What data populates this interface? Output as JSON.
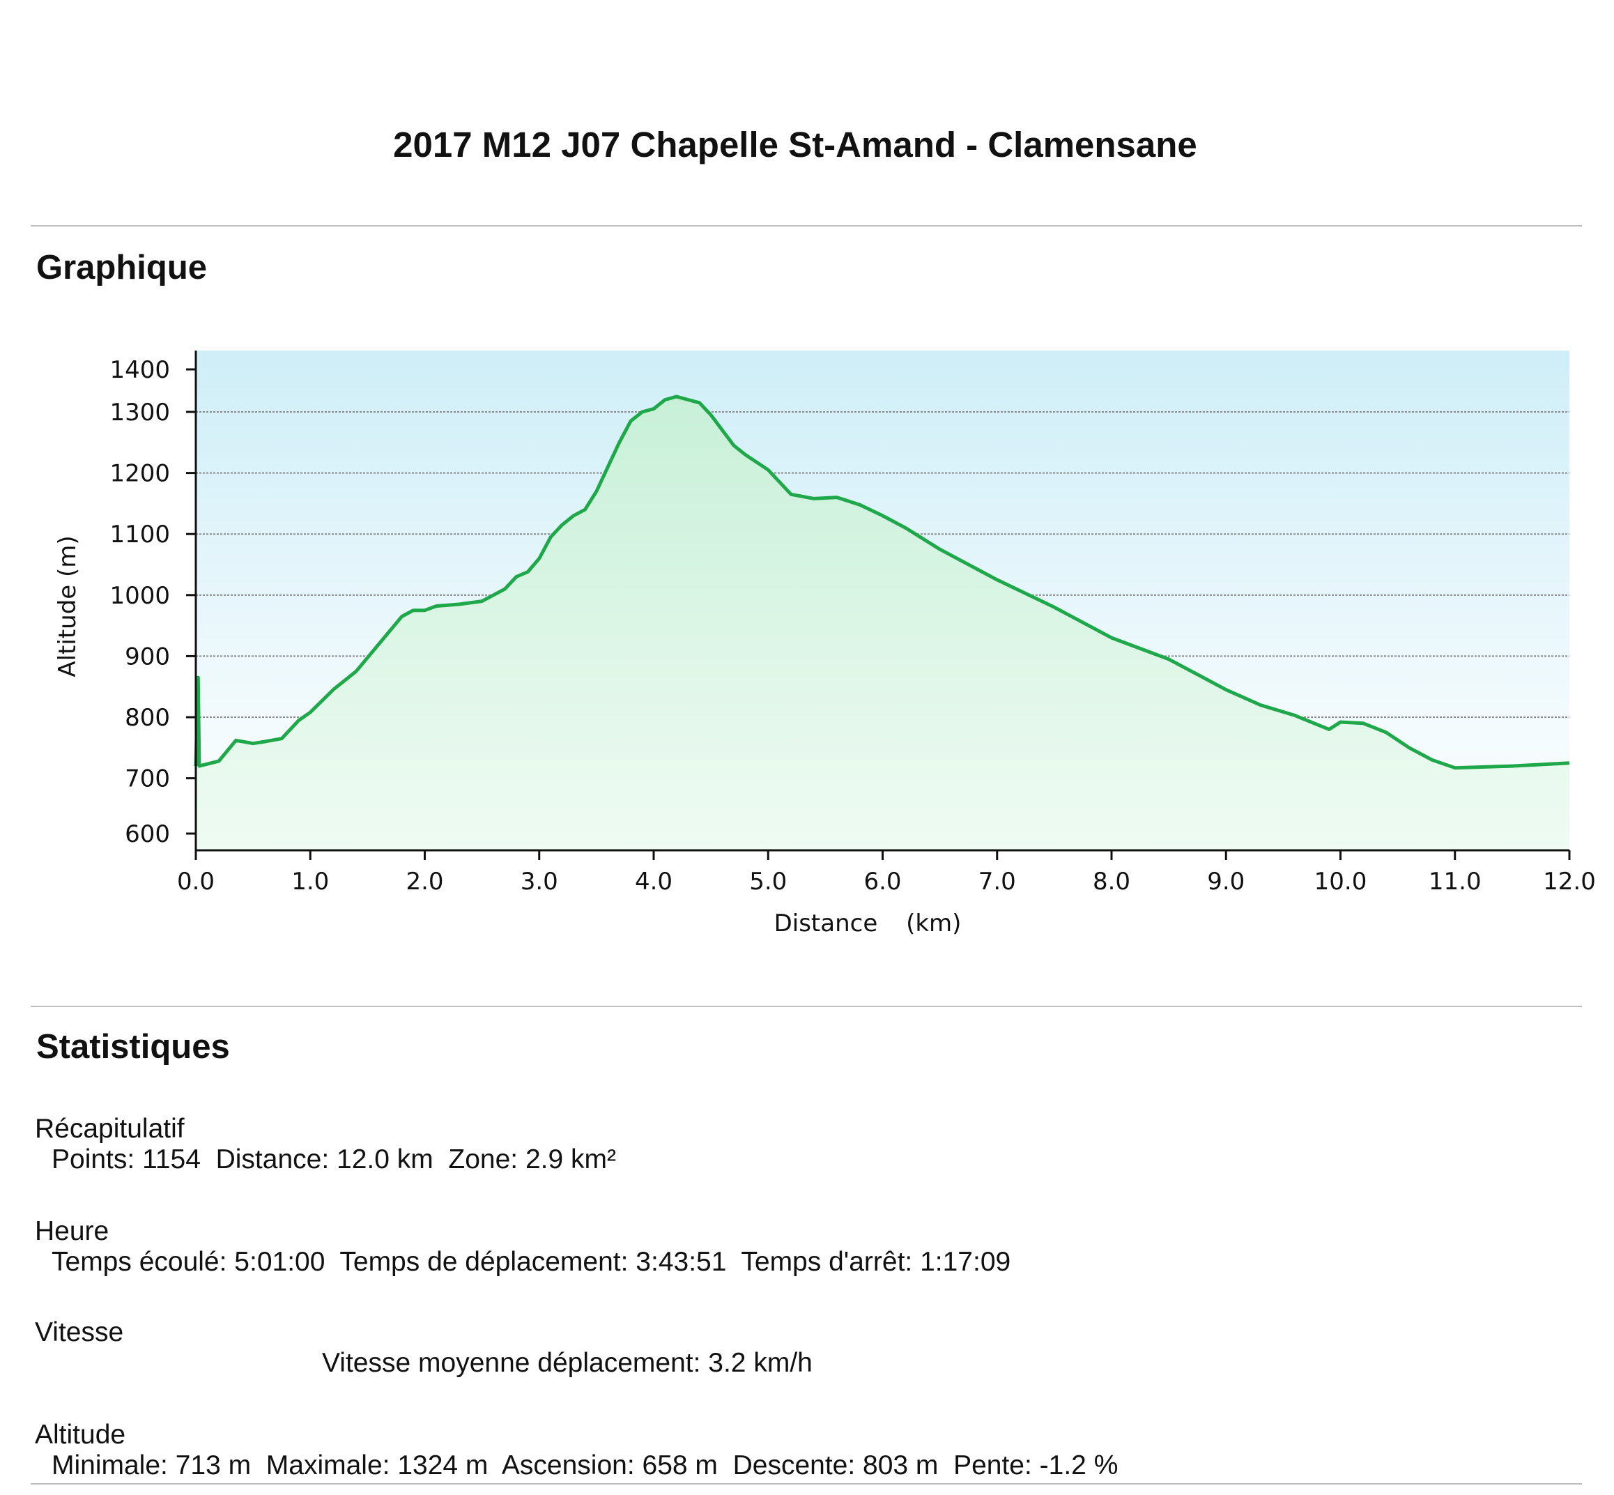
{
  "page": {
    "title": "2017 M12 J07 Chapelle St-Amand - Clamensane",
    "section_chart": "Graphique",
    "section_stats": "Statistiques"
  },
  "colors": {
    "line": "#1fa84a",
    "sky_top": "#cfeef8",
    "sky_bottom": "#ffffff",
    "fill": "#d9f5e3"
  },
  "chart_data": {
    "type": "area",
    "title": "",
    "xlabel": "Distance",
    "xunit": "(km)",
    "ylabel": "Altitude (m)",
    "xlim": [
      0,
      12
    ],
    "ylim": [
      600,
      1400
    ],
    "x_ticks": [
      "0.0",
      "1.0",
      "2.0",
      "3.0",
      "4.0",
      "5.0",
      "6.0",
      "7.0",
      "8.0",
      "9.0",
      "10.0",
      "11.0",
      "12.0"
    ],
    "y_ticks": [
      "1400",
      "1300",
      "1200",
      "1100",
      "1000",
      "900",
      "800",
      "700",
      "600"
    ],
    "y_tick_values": [
      1400,
      1300,
      1200,
      1100,
      1000,
      900,
      800,
      700,
      600
    ],
    "grid": "horizontal",
    "legend": "none",
    "series": [
      {
        "x": [
          0.0,
          0.02,
          0.03,
          0.2,
          0.35,
          0.5,
          0.6,
          0.75,
          0.9,
          1.0,
          1.2,
          1.4,
          1.6,
          1.8,
          1.9,
          2.0,
          2.1,
          2.3,
          2.5,
          2.7,
          2.8,
          2.9,
          3.0,
          3.1,
          3.2,
          3.3,
          3.4,
          3.5,
          3.6,
          3.7,
          3.8,
          3.9,
          4.0,
          4.1,
          4.2,
          4.3,
          4.4,
          4.5,
          4.6,
          4.7,
          4.8,
          5.0,
          5.2,
          5.4,
          5.6,
          5.8,
          6.0,
          6.2,
          6.5,
          7.0,
          7.5,
          8.0,
          8.5,
          9.0,
          9.3,
          9.6,
          9.9,
          10.0,
          10.2,
          10.4,
          10.6,
          10.8,
          11.0,
          11.5,
          12.0
        ],
        "y": [
          720,
          865,
          720,
          728,
          762,
          757,
          760,
          765,
          795,
          808,
          845,
          875,
          920,
          965,
          975,
          975,
          982,
          985,
          990,
          1010,
          1030,
          1038,
          1060,
          1095,
          1115,
          1130,
          1140,
          1170,
          1210,
          1250,
          1285,
          1300,
          1305,
          1320,
          1325,
          1320,
          1315,
          1295,
          1270,
          1245,
          1230,
          1205,
          1165,
          1158,
          1160,
          1148,
          1130,
          1110,
          1075,
          1025,
          980,
          930,
          895,
          845,
          820,
          803,
          780,
          792,
          790,
          775,
          750,
          730,
          717,
          720,
          725
        ]
      }
    ]
  },
  "stats": {
    "recap": {
      "label": "Récapitulatif",
      "line": "Points: 1154  Distance: 12.0 km  Zone: 2.9 km²"
    },
    "time": {
      "label": "Heure",
      "line": "Temps écoulé: 5:01:00  Temps de déplacement: 3:43:51  Temps d'arrêt: 1:17:09"
    },
    "speed": {
      "label": "Vitesse",
      "line": "Vitesse moyenne déplacement: 3.2 km/h"
    },
    "altitude": {
      "label": "Altitude",
      "line": "Minimale: 713 m  Maximale: 1324 m  Ascension: 658 m  Descente: 803 m  Pente: -1.2 %"
    }
  }
}
